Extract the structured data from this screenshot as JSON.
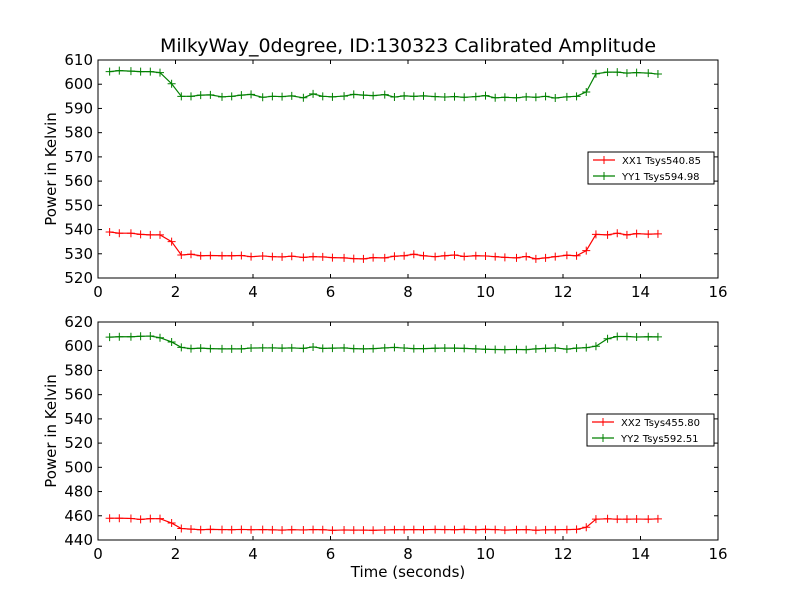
{
  "chart_data": [
    {
      "type": "line",
      "title": "MilkyWay_0degree, ID:130323 Calibrated Amplitude",
      "xlabel": "",
      "ylabel": "Power in Kelvin",
      "xlim": [
        0,
        16
      ],
      "ylim": [
        520,
        610
      ],
      "xticks": [
        0,
        2,
        4,
        6,
        8,
        10,
        12,
        14,
        16
      ],
      "yticks": [
        520,
        530,
        540,
        550,
        560,
        570,
        580,
        590,
        600,
        610
      ],
      "grid": false,
      "legend_position": "right",
      "x": [
        0.3,
        0.55,
        0.85,
        1.1,
        1.35,
        1.6,
        1.9,
        2.15,
        2.4,
        2.65,
        2.9,
        3.2,
        3.45,
        3.7,
        3.95,
        4.25,
        4.5,
        4.75,
        5.0,
        5.3,
        5.55,
        5.8,
        6.05,
        6.35,
        6.6,
        6.85,
        7.1,
        7.4,
        7.65,
        7.9,
        8.15,
        8.4,
        8.7,
        8.95,
        9.2,
        9.45,
        9.75,
        10.0,
        10.25,
        10.5,
        10.8,
        11.05,
        11.3,
        11.55,
        11.8,
        12.1,
        12.35,
        12.6,
        12.85,
        13.15,
        13.4,
        13.65,
        13.9,
        14.2,
        14.45
      ],
      "series": [
        {
          "name": "XX1 Tsys540.85",
          "color": "#ff0000",
          "values": [
            539,
            538.5,
            538.5,
            538,
            537.8,
            537.8,
            535,
            529.5,
            529.8,
            529.2,
            529.3,
            529.2,
            529.2,
            529.3,
            528.8,
            529.1,
            528.8,
            528.7,
            529.0,
            528.5,
            528.8,
            528.7,
            528.4,
            528.3,
            528.0,
            527.9,
            528.4,
            528.3,
            529.0,
            529.2,
            529.8,
            529.2,
            528.8,
            529.2,
            529.5,
            528.9,
            529.2,
            529.1,
            528.8,
            528.5,
            528.3,
            528.9,
            527.9,
            528.3,
            528.8,
            529.4,
            529.2,
            531.3,
            538.0,
            537.8,
            538.5,
            537.8,
            538.3,
            538.1,
            538.2
          ]
        },
        {
          "name": "YY1 Tsys594.98",
          "color": "#008000",
          "values": [
            605.2,
            605.6,
            605.4,
            605.2,
            605.2,
            604.8,
            600.2,
            595.0,
            595.0,
            595.5,
            595.6,
            594.8,
            595.0,
            595.5,
            595.8,
            594.6,
            595.0,
            594.9,
            595.2,
            594.4,
            596.0,
            595.0,
            594.8,
            595.1,
            595.8,
            595.5,
            595.3,
            595.7,
            594.7,
            595.2,
            595.0,
            595.2,
            594.9,
            594.7,
            594.9,
            594.6,
            594.9,
            595.3,
            594.4,
            594.6,
            594.4,
            594.8,
            594.6,
            595.0,
            594.3,
            594.8,
            595.0,
            596.8,
            604.3,
            605.0,
            605.0,
            604.6,
            604.8,
            604.6,
            604.2
          ]
        }
      ]
    },
    {
      "type": "line",
      "title": "",
      "xlabel": "Time (seconds)",
      "ylabel": "Power in Kelvin",
      "xlim": [
        0,
        16
      ],
      "ylim": [
        440,
        620
      ],
      "xticks": [
        0,
        2,
        4,
        6,
        8,
        10,
        12,
        14,
        16
      ],
      "yticks": [
        440,
        460,
        480,
        500,
        520,
        540,
        560,
        580,
        600,
        620
      ],
      "grid": false,
      "legend_position": "right",
      "x": [
        0.3,
        0.55,
        0.85,
        1.1,
        1.35,
        1.6,
        1.9,
        2.15,
        2.4,
        2.65,
        2.9,
        3.2,
        3.45,
        3.7,
        3.95,
        4.25,
        4.5,
        4.75,
        5.0,
        5.3,
        5.55,
        5.8,
        6.05,
        6.35,
        6.6,
        6.85,
        7.1,
        7.4,
        7.65,
        7.9,
        8.15,
        8.4,
        8.7,
        8.95,
        9.2,
        9.45,
        9.75,
        10.0,
        10.25,
        10.5,
        10.8,
        11.05,
        11.3,
        11.55,
        11.8,
        12.1,
        12.35,
        12.6,
        12.85,
        13.15,
        13.4,
        13.65,
        13.9,
        14.2,
        14.45
      ],
      "series": [
        {
          "name": "XX2 Tsys455.80",
          "color": "#ff0000",
          "values": [
            458.0,
            458.0,
            457.8,
            457.0,
            457.6,
            457.6,
            454.0,
            449.5,
            449.0,
            448.5,
            448.8,
            448.6,
            448.5,
            448.7,
            448.5,
            448.6,
            448.4,
            448.2,
            448.5,
            448.3,
            448.6,
            448.5,
            448.0,
            448.3,
            448.2,
            448.2,
            448.0,
            448.3,
            448.5,
            448.5,
            448.6,
            448.5,
            448.7,
            448.6,
            448.5,
            448.8,
            448.5,
            448.8,
            448.6,
            448.2,
            448.5,
            448.6,
            448.1,
            448.4,
            448.5,
            448.6,
            448.8,
            450.5,
            457.2,
            457.5,
            457.2,
            457.2,
            457.3,
            457.2,
            457.4
          ]
        },
        {
          "name": "YY2 Tsys592.51",
          "color": "#008000",
          "values": [
            607.5,
            607.8,
            607.8,
            608.2,
            608.4,
            607.0,
            603.5,
            599.0,
            598.0,
            598.4,
            598.0,
            597.8,
            597.8,
            597.8,
            598.5,
            598.6,
            598.6,
            598.4,
            598.6,
            598.2,
            599.4,
            598.2,
            598.4,
            598.6,
            598.0,
            597.8,
            598.0,
            598.6,
            599.0,
            598.5,
            598.0,
            598.0,
            598.3,
            598.5,
            598.4,
            598.2,
            597.8,
            597.5,
            597.3,
            597.2,
            597.3,
            597.2,
            597.8,
            598.2,
            598.6,
            597.6,
            598.4,
            598.8,
            600.0,
            606.2,
            608.0,
            608.0,
            607.6,
            607.8,
            607.7
          ]
        }
      ]
    }
  ]
}
